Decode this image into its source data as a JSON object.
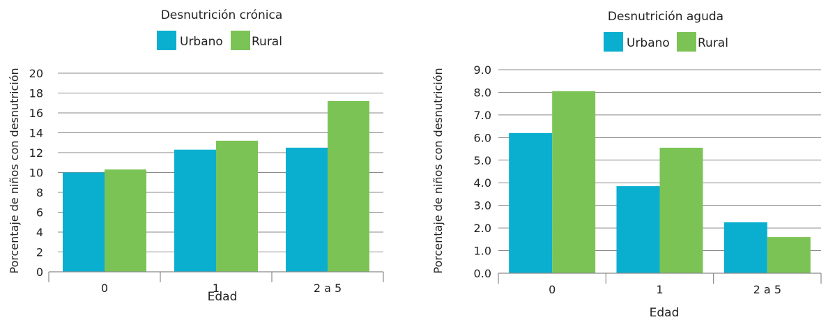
{
  "colors": {
    "urbano": "#0AAFD0",
    "rural": "#7CC356",
    "grid": "#8a8a8a",
    "text": "#222222"
  },
  "chart_data": [
    {
      "type": "bar",
      "title": "Desnutrición crónica",
      "xlabel": "Edad",
      "ylabel": "Porcentaje de niños con desnutrición",
      "categories": [
        "0",
        "1",
        "2 a 5"
      ],
      "series": [
        {
          "name": "Urbano",
          "color": "#0AAFD0",
          "values": [
            10.0,
            12.3,
            12.5
          ]
        },
        {
          "name": "Rural",
          "color": "#7CC356",
          "values": [
            10.3,
            13.2,
            17.2
          ]
        }
      ],
      "ylim": [
        0,
        20
      ],
      "yticks": [
        "0",
        "2",
        "4",
        "6",
        "8",
        "10",
        "12",
        "14",
        "16",
        "18",
        "20"
      ],
      "grid": true,
      "legend": "top-center"
    },
    {
      "type": "bar",
      "title": "Desnutrición aguda",
      "xlabel": "Edad",
      "ylabel": "Porcentaje de niños con desnutrición",
      "categories": [
        "0",
        "1",
        "2 a 5"
      ],
      "series": [
        {
          "name": "Urbano",
          "color": "#0AAFD0",
          "values": [
            6.2,
            3.85,
            2.25
          ]
        },
        {
          "name": "Rural",
          "color": "#7CC356",
          "values": [
            8.05,
            5.55,
            1.6
          ]
        }
      ],
      "ylim": [
        0,
        9
      ],
      "yticks": [
        "0.0",
        "1.0",
        "2.0",
        "3.0",
        "4.0",
        "5.0",
        "6.0",
        "7.0",
        "8.0",
        "9.0"
      ],
      "grid": true,
      "legend": "top-center"
    }
  ]
}
